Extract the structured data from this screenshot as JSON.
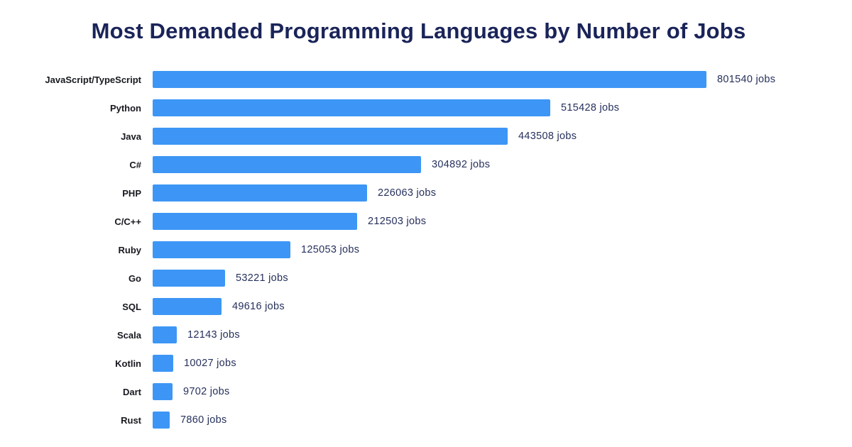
{
  "colors": {
    "bar": "#3d96f5",
    "title": "#1a2459",
    "category_label": "#17191f",
    "value_label": "#26305c",
    "background": "#ffffff"
  },
  "chart_data": {
    "type": "bar",
    "orientation": "horizontal",
    "title": "Most Demanded Programming Languages by Number of Jobs",
    "categories": [
      "JavaScript/TypeScript",
      "Python",
      "Java",
      "C#",
      "PHP",
      "C/C++",
      "Ruby",
      "Go",
      "SQL",
      "Scala",
      "Kotlin",
      "Dart",
      "Rust"
    ],
    "values": [
      801540,
      515428,
      443508,
      304892,
      226063,
      212503,
      125053,
      53221,
      49616,
      12143,
      10027,
      9702,
      7860
    ],
    "value_suffix": "jobs",
    "value_labels": [
      "801540 jobs",
      "515428 jobs",
      "443508 jobs",
      "304892 jobs",
      "226063 jobs",
      "212503 jobs",
      "125053 jobs",
      "53221 jobs",
      "49616 jobs",
      "12143 jobs",
      "10027 jobs",
      "9702 jobs",
      "7860 jobs"
    ],
    "xlim": [
      0,
      801540
    ],
    "grid": false,
    "legend": false,
    "axis_ticks_visible": false
  }
}
